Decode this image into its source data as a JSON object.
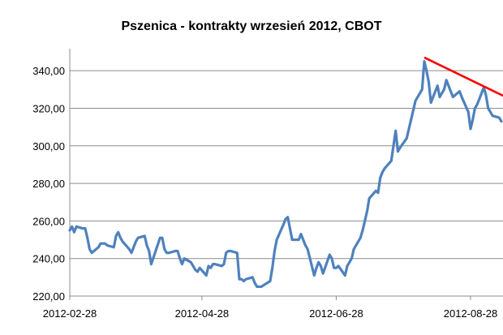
{
  "chart_data": {
    "type": "line",
    "title": "Pszenica - kontrakty wrzesień 2012, CBOT",
    "xlabel": "",
    "ylabel": "",
    "ylim": [
      220,
      350
    ],
    "y_ticks": [
      "220,00",
      "240,00",
      "260,00",
      "280,00",
      "300,00",
      "320,00",
      "340,00"
    ],
    "y_tick_values": [
      220,
      240,
      260,
      280,
      300,
      320,
      340
    ],
    "x_ticks": [
      "2012-02-28",
      "2012-04-28",
      "2012-06-28",
      "2012-08-28"
    ],
    "x_range": [
      "2012-02-28",
      "2012-09-11"
    ],
    "grid": "horizontal",
    "series": [
      {
        "color": "#4f81bd",
        "points": [
          [
            "2012-02-28",
            255
          ],
          [
            "2012-02-29",
            257
          ],
          [
            "2012-03-01",
            254
          ],
          [
            "2012-03-02",
            257
          ],
          [
            "2012-03-05",
            256
          ],
          [
            "2012-03-06",
            256
          ],
          [
            "2012-03-07",
            251
          ],
          [
            "2012-03-08",
            245
          ],
          [
            "2012-03-09",
            243
          ],
          [
            "2012-03-12",
            246
          ],
          [
            "2012-03-13",
            248
          ],
          [
            "2012-03-14",
            248
          ],
          [
            "2012-03-15",
            248
          ],
          [
            "2012-03-16",
            247
          ],
          [
            "2012-03-19",
            246
          ],
          [
            "2012-03-20",
            252
          ],
          [
            "2012-03-21",
            254
          ],
          [
            "2012-03-22",
            251
          ],
          [
            "2012-03-23",
            249
          ],
          [
            "2012-03-26",
            245
          ],
          [
            "2012-03-27",
            243
          ],
          [
            "2012-03-28",
            246
          ],
          [
            "2012-03-29",
            249
          ],
          [
            "2012-03-30",
            251
          ],
          [
            "2012-04-02",
            252
          ],
          [
            "2012-04-03",
            247
          ],
          [
            "2012-04-04",
            244
          ],
          [
            "2012-04-05",
            237
          ],
          [
            "2012-04-09",
            251
          ],
          [
            "2012-04-10",
            251
          ],
          [
            "2012-04-11",
            245
          ],
          [
            "2012-04-12",
            243
          ],
          [
            "2012-04-13",
            243
          ],
          [
            "2012-04-16",
            244
          ],
          [
            "2012-04-17",
            244
          ],
          [
            "2012-04-18",
            240
          ],
          [
            "2012-04-19",
            237
          ],
          [
            "2012-04-20",
            240
          ],
          [
            "2012-04-23",
            238
          ],
          [
            "2012-04-24",
            236
          ],
          [
            "2012-04-25",
            234
          ],
          [
            "2012-04-26",
            233
          ],
          [
            "2012-04-27",
            235
          ],
          [
            "2012-04-30",
            231
          ],
          [
            "2012-05-01",
            236
          ],
          [
            "2012-05-02",
            235
          ],
          [
            "2012-05-03",
            237
          ],
          [
            "2012-05-04",
            237
          ],
          [
            "2012-05-07",
            236
          ],
          [
            "2012-05-08",
            237
          ],
          [
            "2012-05-09",
            243
          ],
          [
            "2012-05-10",
            244
          ],
          [
            "2012-05-11",
            244
          ],
          [
            "2012-05-14",
            243
          ],
          [
            "2012-05-15",
            229
          ],
          [
            "2012-05-16",
            229
          ],
          [
            "2012-05-17",
            228
          ],
          [
            "2012-05-18",
            229
          ],
          [
            "2012-05-21",
            230
          ],
          [
            "2012-05-22",
            227
          ],
          [
            "2012-05-23",
            225
          ],
          [
            "2012-05-24",
            225
          ],
          [
            "2012-05-25",
            225
          ],
          [
            "2012-05-29",
            228
          ],
          [
            "2012-05-30",
            235
          ],
          [
            "2012-05-31",
            244
          ],
          [
            "2012-06-01",
            250
          ],
          [
            "2012-06-04",
            258
          ],
          [
            "2012-06-05",
            261
          ],
          [
            "2012-06-06",
            262
          ],
          [
            "2012-06-07",
            256
          ],
          [
            "2012-06-08",
            250
          ],
          [
            "2012-06-11",
            250
          ],
          [
            "2012-06-12",
            253
          ],
          [
            "2012-06-13",
            250
          ],
          [
            "2012-06-14",
            247
          ],
          [
            "2012-06-15",
            245
          ],
          [
            "2012-06-18",
            231
          ],
          [
            "2012-06-19",
            235
          ],
          [
            "2012-06-20",
            238
          ],
          [
            "2012-06-21",
            236
          ],
          [
            "2012-06-22",
            232
          ],
          [
            "2012-06-25",
            242
          ],
          [
            "2012-06-26",
            240
          ],
          [
            "2012-06-27",
            235
          ],
          [
            "2012-06-28",
            235
          ],
          [
            "2012-06-29",
            236
          ],
          [
            "2012-07-02",
            231
          ],
          [
            "2012-07-03",
            236
          ],
          [
            "2012-07-05",
            240
          ],
          [
            "2012-07-06",
            245
          ],
          [
            "2012-07-09",
            251
          ],
          [
            "2012-07-10",
            255
          ],
          [
            "2012-07-11",
            260
          ],
          [
            "2012-07-12",
            265
          ],
          [
            "2012-07-13",
            272
          ],
          [
            "2012-07-16",
            276
          ],
          [
            "2012-07-17",
            275
          ],
          [
            "2012-07-18",
            283
          ],
          [
            "2012-07-19",
            286
          ],
          [
            "2012-07-20",
            288
          ],
          [
            "2012-07-23",
            292
          ],
          [
            "2012-07-24",
            300
          ],
          [
            "2012-07-25",
            308
          ],
          [
            "2012-07-26",
            297
          ],
          [
            "2012-07-27",
            299
          ],
          [
            "2012-07-30",
            304
          ],
          [
            "2012-07-31",
            309
          ],
          [
            "2012-08-01",
            314
          ],
          [
            "2012-08-02",
            319
          ],
          [
            "2012-08-03",
            324
          ],
          [
            "2012-08-06",
            330
          ],
          [
            "2012-08-07",
            345
          ],
          [
            "2012-08-08",
            340
          ],
          [
            "2012-08-09",
            334
          ],
          [
            "2012-08-10",
            323
          ],
          [
            "2012-08-13",
            332
          ],
          [
            "2012-08-14",
            326
          ],
          [
            "2012-08-15",
            328
          ],
          [
            "2012-08-16",
            330
          ],
          [
            "2012-08-17",
            335
          ],
          [
            "2012-08-20",
            326
          ],
          [
            "2012-08-21",
            327
          ],
          [
            "2012-08-22",
            328
          ],
          [
            "2012-08-23",
            329
          ],
          [
            "2012-08-24",
            326
          ],
          [
            "2012-08-27",
            318
          ],
          [
            "2012-08-28",
            309
          ],
          [
            "2012-08-29",
            314
          ],
          [
            "2012-08-30",
            320
          ],
          [
            "2012-08-31",
            322
          ],
          [
            "2012-09-03",
            331
          ],
          [
            "2012-09-04",
            327
          ],
          [
            "2012-09-05",
            320
          ],
          [
            "2012-09-06",
            318
          ],
          [
            "2012-09-07",
            316
          ],
          [
            "2012-09-10",
            315
          ],
          [
            "2012-09-11",
            313
          ]
        ]
      }
    ],
    "annotations": [
      {
        "type": "trendline",
        "color": "#ff0000",
        "from": [
          "2012-08-07",
          347
        ],
        "to": [
          "2012-09-13",
          326
        ]
      }
    ]
  }
}
